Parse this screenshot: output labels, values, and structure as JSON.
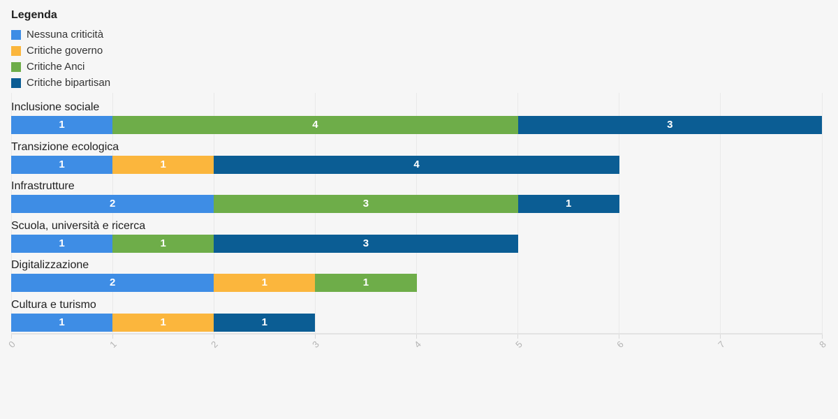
{
  "legend": {
    "title": "Legenda"
  },
  "chart_data": {
    "type": "bar",
    "orientation": "horizontal",
    "stacked": true,
    "title": "",
    "categories": [
      "Inclusione sociale",
      "Transizione ecologica",
      "Infrastrutture",
      "Scuola, università e ricerca",
      "Digitalizzazione",
      "Cultura e turismo"
    ],
    "series": [
      {
        "name": "Nessuna criticità",
        "color": "#3e8de5",
        "values": [
          1,
          1,
          2,
          1,
          2,
          1
        ]
      },
      {
        "name": "Critiche governo",
        "color": "#fbb63d",
        "values": [
          0,
          1,
          0,
          0,
          1,
          1
        ]
      },
      {
        "name": "Critiche Anci",
        "color": "#6ead49",
        "values": [
          4,
          0,
          3,
          1,
          1,
          0
        ]
      },
      {
        "name": "Critiche bipartisan",
        "color": "#0b5d94",
        "values": [
          3,
          4,
          1,
          3,
          0,
          1
        ]
      }
    ],
    "totals": [
      8,
      6,
      6,
      5,
      4,
      3
    ],
    "xlabel": "",
    "ylabel": "",
    "xlim": [
      0,
      8
    ],
    "xticks": [
      "0",
      "1",
      "2",
      "3",
      "4",
      "5",
      "6",
      "7",
      "8"
    ],
    "grid": true,
    "legend_position": "top-left",
    "value_label_color": "#ffffff"
  },
  "style": {
    "background": "#f6f6f6",
    "grid_color": "#e9e9e9",
    "axis_line_color": "#e3e3e3",
    "tick_mark_color": "#d9d9d9",
    "tick_label_color": "#b3b3b3",
    "category_label_color": "#1f1f1f",
    "legend_title_color": "#1f1f1f",
    "legend_text_color": "#333333"
  }
}
